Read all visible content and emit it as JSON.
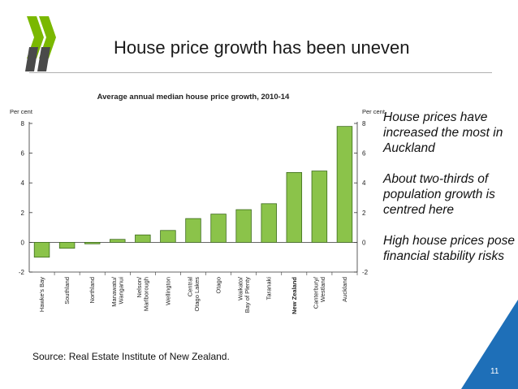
{
  "slide": {
    "title": "House price growth has been uneven",
    "bullets": [
      "House prices have increased the most in Auckland",
      "About two-thirds  of population growth is centred here",
      "High house prices pose financial stability risks"
    ],
    "source": "Source: Real Estate Institute of New Zealand.",
    "page_number": "11",
    "colors": {
      "logo_green": "#7ab800",
      "corner_blue": "#1e6fb8"
    }
  },
  "chart_data": {
    "type": "bar",
    "title": "Average annual median house price growth, 2010-14",
    "ylabel": "Per cent",
    "ylim": [
      -2,
      8
    ],
    "yticks": [
      "8",
      "6",
      "4",
      "2",
      "0",
      "-2"
    ],
    "categories": [
      "Hawke's Bay",
      "Southland",
      "Northland",
      "Manawatu/ Wanganui",
      "Nelson/ Marlborough",
      "Wellington",
      "Central Otago Lakes",
      "Otago",
      "Waikato/ Bay of Plenty",
      "Taranaki",
      "New Zealand",
      "Canterbury/ Westland",
      "Auckland"
    ],
    "values": [
      -1.0,
      -0.4,
      -0.1,
      0.2,
      0.5,
      0.8,
      1.6,
      1.9,
      2.2,
      2.6,
      4.7,
      4.8,
      7.8
    ],
    "highlight_category": "New Zealand",
    "bar_color": "#8bc34a",
    "bar_stroke": "#3d6b1d",
    "grid": false,
    "legend": "none"
  }
}
